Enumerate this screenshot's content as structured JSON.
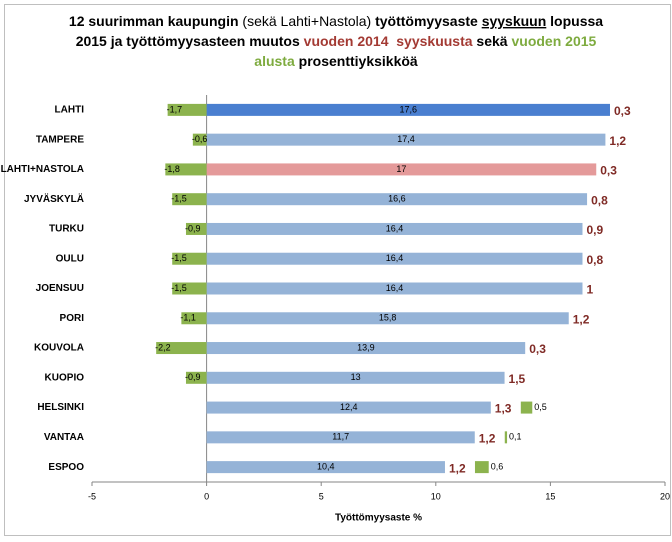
{
  "chart_data": {
    "type": "bar",
    "title_lines": [
      [
        {
          "text": "12 suurimman kaupungin ",
          "bold": true
        },
        {
          "text": "(sekä Lahti+Nastola) ",
          "bold": false
        },
        {
          "text": "työttömyysaste ",
          "bold": true
        },
        {
          "text": "syyskuun",
          "bold": true,
          "underline": true
        },
        {
          "text": " lopussa",
          "bold": true
        }
      ],
      [
        {
          "text": "2015 ja työttömyysasteen muutos ",
          "bold": true
        },
        {
          "text": "vuoden 2014  syyskuusta",
          "bold": true,
          "color": "#a33a33"
        },
        {
          "text": " sekä ",
          "bold": true
        },
        {
          "text": "vuoden 2015",
          "bold": true,
          "color": "#7eab3f"
        }
      ],
      [
        {
          "text": "alusta",
          "bold": true,
          "color": "#7eab3f"
        },
        {
          "text": " prosenttiyksikköä",
          "bold": true
        }
      ]
    ],
    "categories": [
      "LAHTI",
      "TAMPERE",
      "LAHTI+NASTOLA",
      "JYVÄSKYLÄ",
      "TURKU",
      "OULU",
      "JOENSUU",
      "PORI",
      "KOUVOLA",
      "KUOPIO",
      "HELSINKI",
      "VANTAA",
      "ESPOO"
    ],
    "series": [
      {
        "role": "rate",
        "color": "#95b3d7",
        "colors": [
          "#4a7fd0",
          "#95b3d7",
          "#e49a9a",
          "#95b3d7",
          "#95b3d7",
          "#95b3d7",
          "#95b3d7",
          "#95b3d7",
          "#95b3d7",
          "#95b3d7",
          "#95b3d7",
          "#95b3d7",
          "#95b3d7"
        ],
        "values": [
          17.6,
          17.4,
          17,
          16.6,
          16.4,
          16.4,
          16.4,
          15.8,
          13.9,
          13,
          12.4,
          11.7,
          10.4
        ],
        "value_labels": [
          "17,6",
          "17,4",
          "17",
          "16,6",
          "16,4",
          "16,4",
          "16,4",
          "15,8",
          "13,9",
          "13",
          "12,4",
          "11,7",
          "10,4"
        ]
      },
      {
        "role": "change-2014",
        "color": "#7f2a25",
        "values": [
          0.3,
          1.2,
          0.3,
          0.8,
          0.9,
          0.8,
          1,
          1.2,
          0.3,
          1.5,
          1.3,
          1.2,
          1.2
        ],
        "value_labels": [
          "0,3",
          "1,2",
          "0,3",
          "0,8",
          "0,9",
          "0,8",
          "1",
          "1,2",
          "0,3",
          "1,5",
          "1,3",
          "1,2",
          "1,2"
        ]
      },
      {
        "role": "change-2015",
        "color": "#8cb34e",
        "values": [
          -1.7,
          -0.6,
          -1.8,
          -1.5,
          -0.9,
          -1.5,
          -1.5,
          -1.1,
          -2.2,
          -0.9,
          0.5,
          0.1,
          0.6
        ],
        "value_labels": [
          "-1,7",
          "-0,6",
          "-1,8",
          "-1,5",
          "-0,9",
          "-1,5",
          "-1,5",
          "-1,1",
          "-2,2",
          "-0,9",
          "0,5",
          "0,1",
          "0,6"
        ]
      }
    ],
    "xlim": [
      -5,
      20
    ],
    "xticks": [
      -5,
      0,
      5,
      10,
      15,
      20
    ],
    "xlabel": "Työttömyysaste %"
  }
}
